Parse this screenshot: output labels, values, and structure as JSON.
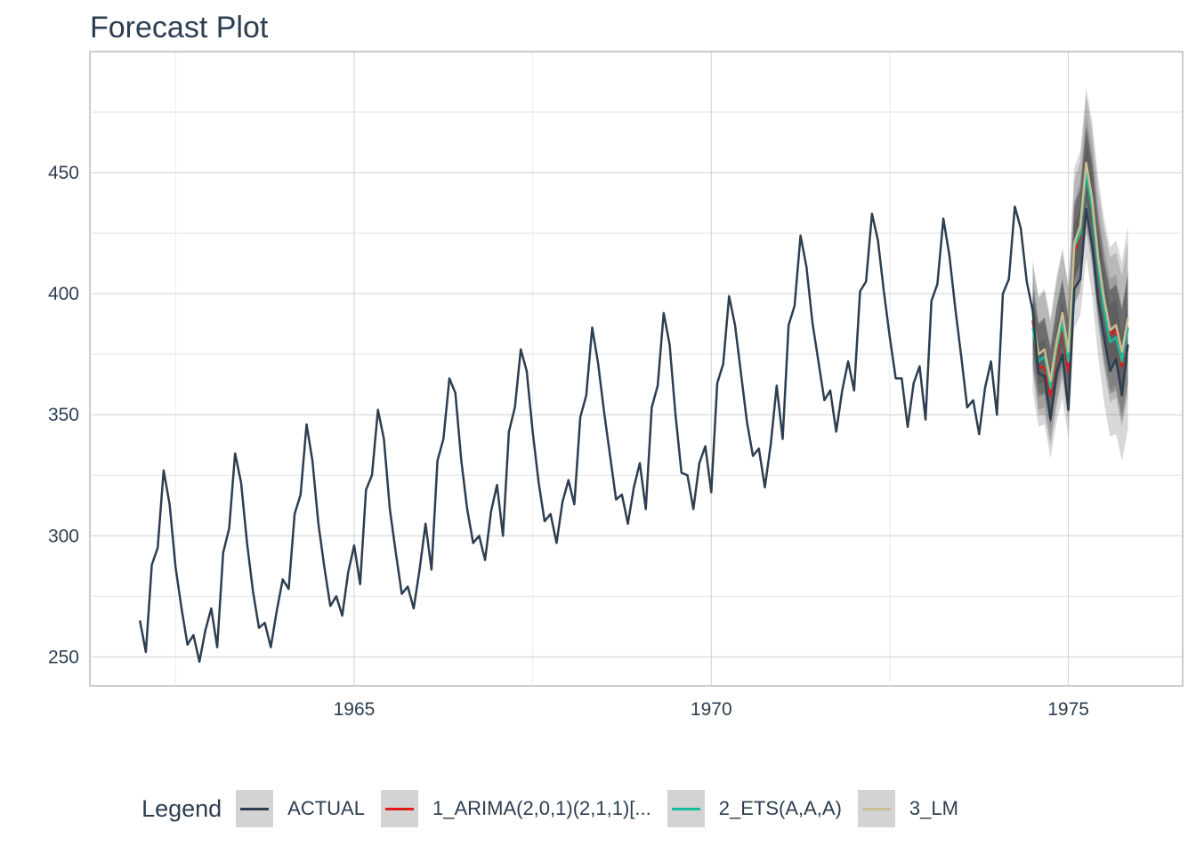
{
  "chart_title": "Forecast Plot",
  "legend": {
    "title": "Legend",
    "items": [
      {
        "label": "ACTUAL",
        "color": "#2c3e50"
      },
      {
        "label": "1_ARIMA(2,0,1)(2,1,1)[...",
        "color": "#e31a1c"
      },
      {
        "label": "2_ETS(A,A,A)",
        "color": "#18bc9c"
      },
      {
        "label": "3_LM",
        "color": "#ccbe93"
      }
    ]
  },
  "chart_data": {
    "type": "line",
    "title": "Forecast Plot",
    "xlabel": "",
    "ylabel": "",
    "xlim": [
      1961.3,
      1976.6
    ],
    "ylim": [
      238,
      500
    ],
    "x_ticks": [
      1965,
      1970,
      1975
    ],
    "y_ticks": [
      250,
      300,
      350,
      400,
      450
    ],
    "grid": true,
    "legend_position": "bottom",
    "actual": {
      "name": "ACTUAL",
      "start": 1962.0,
      "step": 0.0833333,
      "values": [
        265,
        252,
        288,
        295,
        327,
        313,
        287,
        270,
        255,
        259,
        248,
        261,
        270,
        254,
        293,
        303,
        334,
        322,
        297,
        277,
        262,
        264,
        254,
        269,
        282,
        278,
        309,
        317,
        346,
        331,
        305,
        287,
        271,
        275,
        267,
        285,
        296,
        280,
        319,
        325,
        352,
        340,
        311,
        293,
        276,
        279,
        270,
        286,
        305,
        286,
        331,
        340,
        365,
        359,
        331,
        311,
        297,
        300,
        290,
        310,
        321,
        300,
        343,
        353,
        377,
        368,
        343,
        322,
        306,
        309,
        297,
        314,
        323,
        313,
        349,
        358,
        386,
        371,
        351,
        333,
        315,
        317,
        305,
        320,
        330,
        311,
        353,
        362,
        392,
        379,
        350,
        326,
        325,
        311,
        330,
        337,
        318,
        363,
        371,
        399,
        387,
        367,
        347,
        333,
        336,
        320,
        338,
        362,
        340,
        387,
        395,
        424,
        411,
        388,
        372,
        356,
        360,
        343,
        360,
        372,
        360,
        401,
        405,
        433,
        422,
        401,
        382,
        365,
        365,
        345,
        363,
        370,
        348,
        397,
        404,
        431,
        416,
        394,
        374,
        353,
        356,
        342,
        361,
        372,
        350,
        400,
        406,
        436,
        427,
        405,
        393,
        367,
        366,
        348,
        367,
        375,
        352,
        402,
        406,
        435,
        420,
        397,
        382,
        368,
        373,
        358,
        379
      ]
    },
    "forecast": {
      "start": 1974.5,
      "step": 0.0833333,
      "series": [
        {
          "name": "1_ARIMA(2,0,1)(2,1,1)[...",
          "color": "#e31a1c",
          "values": [
            389,
            369,
            370,
            358,
            374,
            386,
            368,
            417,
            424,
            451,
            437,
            413,
            396,
            383,
            385,
            370,
            386
          ],
          "lower": [
            370,
            350,
            350,
            337,
            353,
            365,
            347,
            396,
            402,
            428,
            414,
            390,
            373,
            360,
            362,
            347,
            363
          ],
          "upper": [
            408,
            388,
            390,
            379,
            395,
            407,
            389,
            438,
            446,
            474,
            460,
            436,
            419,
            406,
            408,
            393,
            409
          ]
        },
        {
          "name": "2_ETS(A,A,A)",
          "color": "#18bc9c",
          "values": [
            386,
            372,
            374,
            361,
            377,
            388,
            372,
            419,
            425,
            450,
            435,
            411,
            393,
            380,
            382,
            372,
            386
          ],
          "lower": [
            360,
            345,
            346,
            332,
            347,
            357,
            340,
            386,
            391,
            415,
            399,
            374,
            355,
            341,
            342,
            331,
            344
          ],
          "upper": [
            412,
            399,
            402,
            390,
            407,
            419,
            404,
            452,
            459,
            485,
            471,
            448,
            431,
            419,
            422,
            413,
            428
          ]
        },
        {
          "name": "3_LM",
          "color": "#ccbe93",
          "values": [
            391,
            375,
            377,
            364,
            380,
            392,
            376,
            421,
            428,
            454,
            439,
            415,
            398,
            385,
            387,
            376,
            390
          ],
          "lower": [
            368,
            352,
            353,
            340,
            355,
            367,
            350,
            395,
            401,
            426,
            411,
            387,
            369,
            355,
            357,
            345,
            358
          ],
          "upper": [
            414,
            398,
            401,
            388,
            405,
            417,
            402,
            447,
            455,
            482,
            467,
            443,
            427,
            415,
            417,
            407,
            422
          ]
        }
      ]
    }
  }
}
